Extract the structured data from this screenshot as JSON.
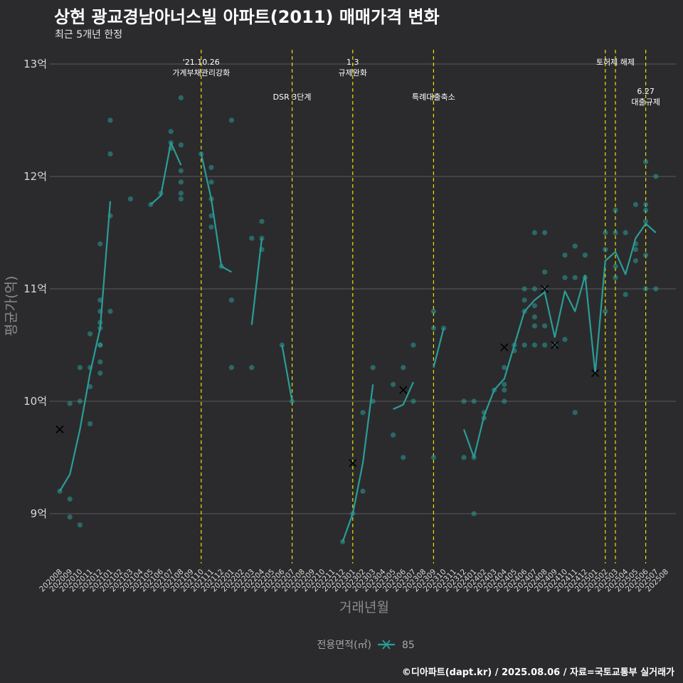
{
  "header": {
    "title": "상현 광교경남아너스빌 아파트(2011) 매매가격 변화",
    "subtitle": "최근 5개년 한정"
  },
  "footer": {
    "caption": "©디아파트(dapt.kr) / 2025.08.06 / 자료=국토교통부 실거래가"
  },
  "colors": {
    "background": "#2b2b2d",
    "series": "#2a9d97",
    "grid": "#5a5a5a",
    "event_line": "#e8e400"
  },
  "chart_data": {
    "type": "line",
    "xlabel": "거래년월",
    "ylabel": "평균가(억)",
    "ylim": [
      8.55,
      13.1
    ],
    "yticks": [
      9,
      10,
      11,
      12,
      13
    ],
    "ytick_labels": [
      "9억",
      "10억",
      "11억",
      "12억",
      "13억"
    ],
    "grid": true,
    "categories": [
      "202008",
      "202009",
      "202010",
      "202011",
      "202012",
      "202101",
      "202102",
      "202103",
      "202104",
      "202105",
      "202106",
      "202107",
      "202108",
      "202109",
      "202110",
      "202111",
      "202112",
      "202201",
      "202202",
      "202203",
      "202204",
      "202205",
      "202206",
      "202207",
      "202208",
      "202209",
      "202210",
      "202211",
      "202212",
      "202301",
      "202302",
      "202303",
      "202304",
      "202305",
      "202306",
      "202307",
      "202308",
      "202309",
      "202310",
      "202311",
      "202312",
      "202401",
      "202402",
      "202403",
      "202404",
      "202405",
      "202406",
      "202407",
      "202408",
      "202409",
      "202410",
      "202411",
      "202412",
      "202501",
      "202502",
      "202503",
      "202504",
      "202505",
      "202506",
      "202507",
      "202508"
    ],
    "events": [
      {
        "x": 14.0,
        "label": "'21.10.26\n가계부채관리강화",
        "row": 0
      },
      {
        "x": 23.0,
        "label": "DSR 3단계",
        "row": 1
      },
      {
        "x": 29.0,
        "label": "1.3\n규제완화",
        "row": 0
      },
      {
        "x": 37.0,
        "label": "특례대출축소",
        "row": 1
      },
      {
        "x": 54.0,
        "label": "",
        "row": 0
      },
      {
        "x": 55.0,
        "label": "토허제 해제",
        "row": 0
      },
      {
        "x": 58.0,
        "label": "6.27\n대출규제",
        "row": 2
      }
    ],
    "series": [
      {
        "name": "85",
        "line_segments": [
          [
            [
              0,
              9.2
            ],
            [
              1,
              9.35
            ],
            [
              2,
              9.75
            ],
            [
              3,
              10.25
            ],
            [
              4,
              10.65
            ],
            [
              5,
              11.78
            ]
          ],
          [
            [
              9,
              11.75
            ],
            [
              10,
              11.83
            ],
            [
              11,
              12.3
            ],
            [
              12,
              12.1
            ]
          ],
          [
            [
              14,
              12.2
            ],
            [
              15,
              11.8
            ],
            [
              16,
              11.2
            ],
            [
              17,
              11.15
            ]
          ],
          [
            [
              19,
              10.68
            ],
            [
              20,
              11.45
            ]
          ],
          [
            [
              22,
              10.5
            ],
            [
              23,
              10.0
            ]
          ],
          [
            [
              28,
              8.75
            ],
            [
              29,
              9.0
            ],
            [
              30,
              9.45
            ],
            [
              31,
              10.15
            ]
          ],
          [
            [
              33,
              9.93
            ],
            [
              34,
              9.97
            ],
            [
              35,
              10.17
            ]
          ],
          [
            [
              37,
              10.3
            ],
            [
              38,
              10.65
            ]
          ],
          [
            [
              40,
              9.75
            ],
            [
              41,
              9.5
            ],
            [
              42,
              9.87
            ],
            [
              43,
              10.1
            ],
            [
              44,
              10.2
            ],
            [
              45,
              10.5
            ],
            [
              46,
              10.8
            ],
            [
              47,
              10.9
            ],
            [
              48,
              10.97
            ],
            [
              49,
              10.57
            ],
            [
              50,
              10.98
            ],
            [
              51,
              10.8
            ],
            [
              52,
              11.12
            ],
            [
              53,
              10.25
            ],
            [
              54,
              11.25
            ],
            [
              55,
              11.33
            ],
            [
              56,
              11.13
            ],
            [
              57,
              11.45
            ],
            [
              58,
              11.58
            ],
            [
              59,
              11.5
            ]
          ]
        ],
        "points": [
          [
            0,
            9.2
          ],
          [
            1,
            9.98
          ],
          [
            1,
            9.13
          ],
          [
            1,
            8.97
          ],
          [
            2,
            10.3
          ],
          [
            2,
            10.0
          ],
          [
            2,
            8.9
          ],
          [
            3,
            10.6
          ],
          [
            3,
            10.3
          ],
          [
            3,
            10.13
          ],
          [
            3,
            9.8
          ],
          [
            4,
            11.4
          ],
          [
            4,
            10.9
          ],
          [
            4,
            10.8
          ],
          [
            4,
            10.7
          ],
          [
            4,
            10.65
          ],
          [
            4,
            10.5
          ],
          [
            4,
            10.5
          ],
          [
            4,
            10.35
          ],
          [
            4,
            10.25
          ],
          [
            5,
            12.5
          ],
          [
            5,
            12.2
          ],
          [
            5,
            11.65
          ],
          [
            5,
            10.8
          ],
          [
            7,
            11.8
          ],
          [
            9,
            11.75
          ],
          [
            10,
            11.85
          ],
          [
            11,
            12.4
          ],
          [
            11,
            12.3
          ],
          [
            11,
            12.25
          ],
          [
            12,
            12.7
          ],
          [
            12,
            12.28
          ],
          [
            12,
            12.05
          ],
          [
            12,
            11.95
          ],
          [
            12,
            11.85
          ],
          [
            12,
            11.8
          ],
          [
            14,
            12.2
          ],
          [
            15,
            12.08
          ],
          [
            15,
            11.95
          ],
          [
            15,
            11.8
          ],
          [
            15,
            11.65
          ],
          [
            15,
            11.55
          ],
          [
            16,
            11.2
          ],
          [
            17,
            12.5
          ],
          [
            17,
            10.9
          ],
          [
            17,
            10.3
          ],
          [
            19,
            11.45
          ],
          [
            19,
            10.3
          ],
          [
            20,
            11.6
          ],
          [
            20,
            11.45
          ],
          [
            20,
            11.35
          ],
          [
            22,
            10.5
          ],
          [
            23,
            10.0
          ],
          [
            28,
            8.75
          ],
          [
            29,
            9.0
          ],
          [
            30,
            9.2
          ],
          [
            30,
            9.9
          ],
          [
            31,
            10.3
          ],
          [
            31,
            10.0
          ],
          [
            33,
            10.15
          ],
          [
            33,
            9.7
          ],
          [
            34,
            10.3
          ],
          [
            34,
            9.5
          ],
          [
            35,
            10.5
          ],
          [
            35,
            10.0
          ],
          [
            37,
            10.8
          ],
          [
            37,
            10.65
          ],
          [
            37,
            9.5
          ],
          [
            38,
            10.65
          ],
          [
            40,
            10.0
          ],
          [
            40,
            9.5
          ],
          [
            41,
            10.0
          ],
          [
            41,
            9.5
          ],
          [
            41,
            9.0
          ],
          [
            42,
            9.9
          ],
          [
            42,
            9.85
          ],
          [
            43,
            10.1
          ],
          [
            44,
            10.3
          ],
          [
            44,
            10.15
          ],
          [
            44,
            10.1
          ],
          [
            44,
            10.0
          ],
          [
            45,
            10.5
          ],
          [
            45,
            10.45
          ],
          [
            46,
            11.0
          ],
          [
            46,
            10.9
          ],
          [
            46,
            10.8
          ],
          [
            46,
            10.5
          ],
          [
            47,
            11.5
          ],
          [
            47,
            11.0
          ],
          [
            47,
            10.85
          ],
          [
            47,
            10.75
          ],
          [
            47,
            10.67
          ],
          [
            47,
            10.5
          ],
          [
            48,
            11.5
          ],
          [
            48,
            11.15
          ],
          [
            48,
            11.0
          ],
          [
            48,
            10.67
          ],
          [
            48,
            10.5
          ],
          [
            49,
            10.5
          ],
          [
            50,
            11.3
          ],
          [
            50,
            11.1
          ],
          [
            50,
            10.55
          ],
          [
            51,
            11.38
          ],
          [
            51,
            11.1
          ],
          [
            51,
            9.9
          ],
          [
            52,
            11.3
          ],
          [
            52,
            11.1
          ],
          [
            54,
            11.5
          ],
          [
            54,
            11.35
          ],
          [
            54,
            10.8
          ],
          [
            55,
            11.7
          ],
          [
            55,
            11.5
          ],
          [
            55,
            11.2
          ],
          [
            55,
            11.1
          ],
          [
            56,
            11.5
          ],
          [
            56,
            10.95
          ],
          [
            57,
            11.75
          ],
          [
            57,
            11.4
          ],
          [
            57,
            11.35
          ],
          [
            57,
            11.25
          ],
          [
            58,
            12.13
          ],
          [
            58,
            11.75
          ],
          [
            58,
            11.7
          ],
          [
            58,
            11.6
          ],
          [
            58,
            11.3
          ],
          [
            58,
            11.0
          ],
          [
            59,
            12.0
          ],
          [
            59,
            11.0
          ]
        ],
        "markers": [
          [
            0,
            9.75
          ],
          [
            29,
            9.45
          ],
          [
            34,
            10.1
          ],
          [
            44,
            10.48
          ],
          [
            48,
            11.0
          ],
          [
            49,
            10.5
          ],
          [
            53,
            10.25
          ]
        ]
      }
    ],
    "legend": {
      "title": "전용면적(㎡)",
      "position": "bottom",
      "entries": [
        "85"
      ]
    }
  }
}
